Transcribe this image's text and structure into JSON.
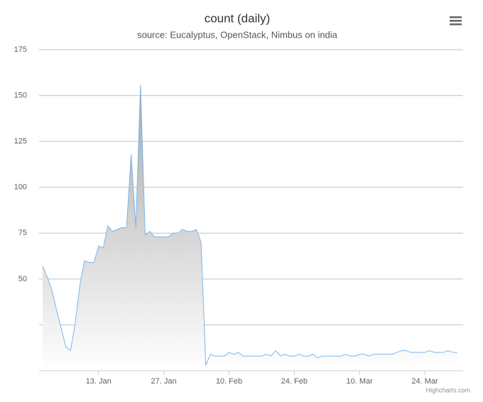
{
  "chart_data": {
    "type": "area",
    "title": "count (daily)",
    "subtitle": "source: Eucalyptus, OpenStack, Nimbus on india",
    "credits": "Highcharts.com",
    "categories": [
      null,
      null,
      null,
      null,
      null,
      null,
      null,
      null,
      null,
      null,
      null,
      null,
      "13. Jan",
      null,
      null,
      null,
      null,
      null,
      null,
      null,
      null,
      null,
      null,
      null,
      null,
      null,
      "27. Jan",
      null,
      null,
      null,
      null,
      null,
      null,
      null,
      null,
      null,
      null,
      null,
      null,
      null,
      "10. Feb",
      null,
      null,
      null,
      null,
      null,
      null,
      null,
      null,
      null,
      null,
      null,
      null,
      null,
      "24. Feb",
      null,
      null,
      null,
      null,
      null,
      null,
      null,
      null,
      null,
      null,
      null,
      null,
      null,
      "10. Mar",
      null,
      null,
      null,
      null,
      null,
      null,
      null,
      null,
      null,
      null,
      null,
      null,
      null,
      "24. Mar",
      null,
      null,
      null,
      null,
      null,
      null,
      null
    ],
    "values": [
      57,
      51,
      44,
      33,
      23,
      13,
      11,
      26,
      47,
      60,
      59,
      59,
      68,
      67,
      79,
      76,
      77,
      78,
      78,
      118,
      78,
      156,
      74,
      76,
      73,
      73,
      73,
      73,
      75,
      75,
      77,
      76,
      76,
      77,
      70,
      3,
      9,
      8,
      8,
      8,
      10,
      9,
      10,
      8,
      8,
      8,
      8,
      8,
      9,
      8,
      11,
      8,
      9,
      8,
      8,
      9,
      8,
      8,
      9,
      7,
      8,
      8,
      8,
      8,
      8,
      9,
      8,
      8,
      9,
      9,
      8,
      9,
      9,
      9,
      9,
      9,
      10,
      11,
      11,
      10,
      10,
      10,
      10,
      11,
      10,
      10,
      10,
      11,
      10,
      10
    ],
    "color": "#7cb5ec",
    "ylim": [
      0,
      175
    ],
    "yticks": [
      50,
      75,
      100,
      125,
      150,
      175
    ],
    "ygrid": [
      0,
      25,
      50,
      75,
      100,
      125,
      150,
      175
    ],
    "grid": true
  }
}
